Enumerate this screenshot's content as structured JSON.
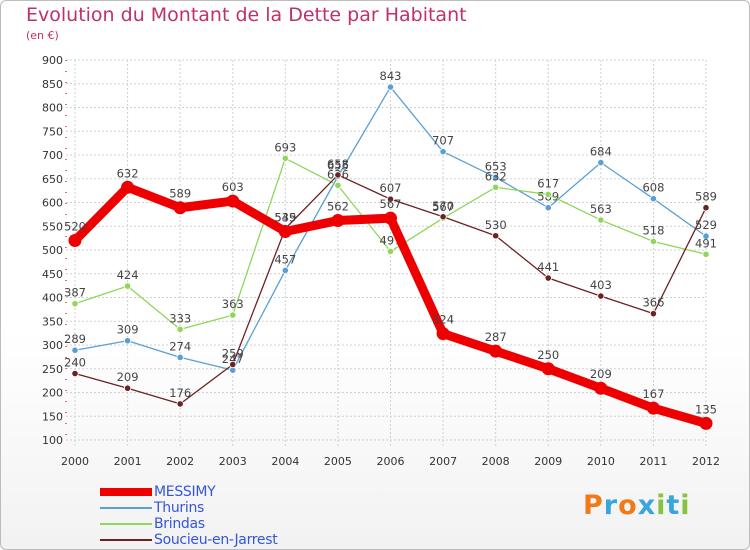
{
  "chart_data": {
    "type": "line",
    "title": "Evolution du Montant de la Dette par Habitant",
    "subtitle": "(en €)",
    "x": [
      "2000",
      "2001",
      "2002",
      "2003",
      "2004",
      "2005",
      "2006",
      "2007",
      "2008",
      "2009",
      "2010",
      "2011",
      "2012"
    ],
    "ylim": [
      100,
      900
    ],
    "yticks": [
      100,
      150,
      200,
      250,
      300,
      350,
      400,
      450,
      500,
      550,
      600,
      650,
      700,
      750,
      800,
      850,
      900
    ],
    "grid": true,
    "legend_position": "bottom-left",
    "series": [
      {
        "name": "Thurins",
        "color": "#5a9fd4",
        "values": [
          289,
          309,
          274,
          247,
          457,
          655,
          843,
          707,
          653,
          589,
          684,
          608,
          529
        ],
        "labels": [
          "289",
          "309",
          "274",
          "247",
          "457",
          "655",
          "843",
          "707",
          "653",
          "589",
          "684",
          "608",
          "529"
        ]
      },
      {
        "name": "Brindas",
        "color": "#8fd65a",
        "values": [
          387,
          424,
          333,
          363,
          693,
          636,
          497,
          567,
          632,
          617,
          563,
          518,
          491
        ],
        "labels": [
          "387",
          "424",
          "333",
          "363",
          "693",
          "636",
          "497",
          "567",
          "632",
          "617",
          "563",
          "518",
          "491"
        ]
      },
      {
        "name": "Soucieu-en-Jarrest",
        "color": "#6b2222",
        "values": [
          240,
          209,
          176,
          259,
          545,
          658,
          607,
          570,
          530,
          441,
          403,
          366,
          589
        ],
        "labels": [
          "240",
          "209",
          "176",
          "259",
          "545",
          "658",
          "607",
          "570",
          "530",
          "441",
          "403",
          "366",
          "589"
        ]
      },
      {
        "name": "MESSIMY",
        "color": "#ee0000",
        "values": [
          520,
          632,
          589,
          603,
          539,
          562,
          567,
          324,
          287,
          250,
          209,
          167,
          135
        ],
        "labels": [
          "520",
          "632",
          "589",
          "603",
          "539",
          "562",
          "567",
          "324",
          "287",
          "250",
          "209",
          "167",
          "135"
        ]
      }
    ]
  },
  "legend": [
    {
      "name": "MESSIMY",
      "color": "#ee0000"
    },
    {
      "name": "Thurins",
      "color": "#5a9fd4"
    },
    {
      "name": "Brindas",
      "color": "#8fd65a"
    },
    {
      "name": "Soucieu-en-Jarrest",
      "color": "#6b2222"
    }
  ],
  "logo": {
    "letters": [
      "P",
      "r",
      "o",
      "x",
      "i",
      "t",
      "i"
    ],
    "colors": [
      "#f07a1a",
      "#37a6de",
      "#f07a1a",
      "#37a6de",
      "#86c440",
      "#37a6de",
      "#86c440"
    ]
  }
}
